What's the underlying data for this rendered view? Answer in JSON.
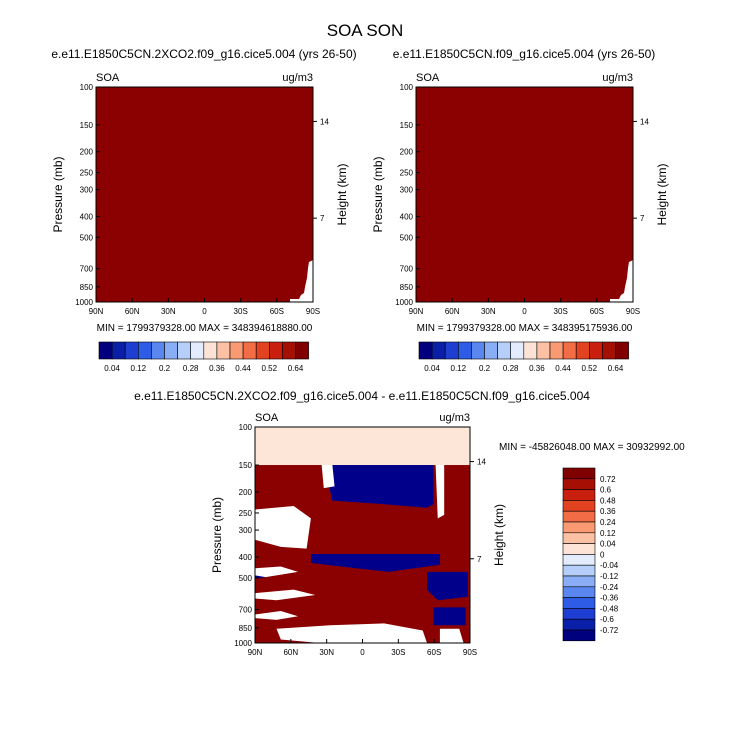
{
  "page_title": "SOA SON",
  "chart_data": [
    {
      "type": "heatmap",
      "title": "e.e11.E1850C5CN.2XCO2.f09_g16.cice5.004 (yrs 26-50)",
      "left_label": "SOA",
      "units": "ug/m3",
      "ylabel": "Pressure (mb)",
      "ylabel_right": "Height (km)",
      "x_ticks": [
        "90N",
        "60N",
        "30N",
        "0",
        "30S",
        "60S",
        "90S"
      ],
      "y_ticks": [
        "100",
        "150",
        "200",
        "250",
        "300",
        "400",
        "500",
        "700",
        "850",
        "1000"
      ],
      "y_right_ticks": [
        "14",
        "7"
      ],
      "stats": "MIN = 1799379328.00   MAX = 348394618880.00",
      "field_color": "#8b0000"
    },
    {
      "type": "heatmap",
      "title": "e.e11.E1850C5CN.f09_g16.cice5.004 (yrs 26-50)",
      "left_label": "SOA",
      "units": "ug/m3",
      "ylabel": "Pressure (mb)",
      "ylabel_right": "Height (km)",
      "x_ticks": [
        "90N",
        "60N",
        "30N",
        "0",
        "30S",
        "60S",
        "90S"
      ],
      "y_ticks": [
        "100",
        "150",
        "200",
        "250",
        "300",
        "400",
        "500",
        "700",
        "850",
        "1000"
      ],
      "y_right_ticks": [
        "14",
        "7"
      ],
      "stats": "MIN = 1799379328.00   MAX = 348395175936.00",
      "field_color": "#8b0000"
    },
    {
      "type": "heatmap",
      "title": "e.e11.E1850C5CN.2XCO2.f09_g16.cice5.004 - e.e11.E1850C5CN.f09_g16.cice5.004",
      "left_label": "SOA",
      "units": "ug/m3",
      "ylabel": "Pressure (mb)",
      "ylabel_right": "Height (km)",
      "x_ticks": [
        "90N",
        "60N",
        "30N",
        "0",
        "30S",
        "60S",
        "90S"
      ],
      "y_ticks": [
        "100",
        "150",
        "200",
        "250",
        "300",
        "400",
        "500",
        "700",
        "850",
        "1000"
      ],
      "y_right_ticks": [
        "14",
        "7"
      ],
      "stats": "MIN = -45826048.00   MAX = 30932992.00",
      "band_color": "#fde5d8",
      "pos_color": "#8b0000",
      "neg_color": "#00008b"
    }
  ],
  "colorbar_top": {
    "labels": [
      "0.04",
      "0.12",
      "0.2",
      "0.28",
      "0.36",
      "0.44",
      "0.52",
      "0.64"
    ],
    "colors": [
      "#00007f",
      "#0a1fa8",
      "#1d3ed1",
      "#2f5ce6",
      "#5a86f0",
      "#89aef5",
      "#b6cffa",
      "#e2ecfd",
      "#fde3d6",
      "#fcc1a4",
      "#f99a72",
      "#f26c45",
      "#e2421f",
      "#c81f0e",
      "#a50f04",
      "#800000"
    ]
  },
  "colorbar_diff": {
    "labels": [
      "0.72",
      "0.6",
      "0.48",
      "0.36",
      "0.24",
      "0.12",
      "0.04",
      "0",
      "-0.04",
      "-0.12",
      "-0.24",
      "-0.36",
      "-0.48",
      "-0.6",
      "-0.72"
    ],
    "colors": [
      "#800000",
      "#a50f04",
      "#c81f0e",
      "#e2421f",
      "#f26c45",
      "#f99a72",
      "#fcc1a4",
      "#fde3d6",
      "#e2ecfd",
      "#b6cffa",
      "#89aef5",
      "#5a86f0",
      "#2f5ce6",
      "#1d3ed1",
      "#0a1fa8",
      "#00007f"
    ]
  }
}
